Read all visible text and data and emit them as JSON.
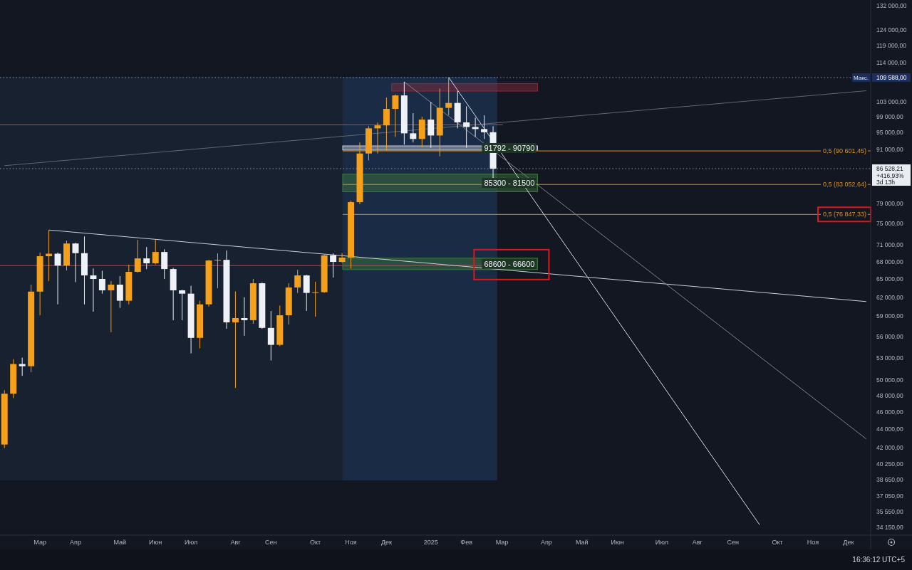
{
  "chart_data": {
    "type": "candlestick",
    "log": true,
    "categories": [
      null,
      null,
      null,
      null,
      "Мар",
      null,
      null,
      null,
      "Апр",
      null,
      null,
      null,
      null,
      "Май",
      null,
      null,
      null,
      "Июн",
      null,
      null,
      null,
      "Июл",
      null,
      null,
      null,
      null,
      "Авг",
      null,
      null,
      null,
      "Сен",
      null,
      null,
      null,
      null,
      "Окт",
      null,
      null,
      null,
      "Ноя",
      null,
      null,
      null,
      "Дек",
      null,
      null,
      null,
      null,
      "2025",
      null,
      null,
      null,
      "Фев",
      null,
      null,
      null,
      "Мар",
      null,
      null,
      null,
      null,
      "Апр",
      null,
      null,
      null,
      "Май",
      null,
      null,
      null,
      "Июн",
      null,
      null,
      null,
      null,
      "Июл",
      null,
      null,
      null,
      "Авг",
      null,
      null,
      null,
      "Сен",
      null,
      null,
      null,
      null,
      "Окт",
      null,
      null,
      null,
      "Ноя",
      null,
      null,
      null,
      "Дек",
      null,
      null
    ],
    "ohlc": [
      [
        42310,
        48710,
        41920,
        48270
      ],
      [
        48270,
        52800,
        47730,
        52130
      ],
      [
        52130,
        53000,
        50560,
        51840
      ],
      [
        51840,
        64050,
        51030,
        62900
      ],
      [
        62900,
        69600,
        59170,
        68950
      ],
      [
        68950,
        73800,
        64640,
        69400
      ],
      [
        69400,
        69600,
        60860,
        67300
      ],
      [
        67300,
        71800,
        66450,
        71260
      ],
      [
        71260,
        71400,
        64470,
        69500
      ],
      [
        69500,
        72590,
        60860,
        65600
      ],
      [
        65600,
        66800,
        59710,
        65000
      ],
      [
        65000,
        66400,
        62570,
        63110
      ],
      [
        63110,
        64640,
        56620,
        64050
      ],
      [
        64050,
        65480,
        60310,
        61430
      ],
      [
        61430,
        67440,
        60860,
        66210
      ],
      [
        66210,
        71920,
        66100,
        68560
      ],
      [
        68560,
        70610,
        66680,
        67690
      ],
      [
        67690,
        71920,
        67500,
        69710
      ],
      [
        69710,
        70200,
        65000,
        66690
      ],
      [
        66690,
        66900,
        58400,
        63110
      ],
      [
        63110,
        63200,
        58400,
        62570
      ],
      [
        62570,
        63850,
        53590,
        55790
      ],
      [
        55790,
        61430,
        54290,
        60860
      ],
      [
        60860,
        68300,
        60500,
        68190
      ],
      [
        68190,
        69450,
        63460,
        68300
      ],
      [
        68300,
        69970,
        57120,
        58080
      ],
      [
        58080,
        62920,
        48990,
        58730
      ],
      [
        58730,
        62000,
        56100,
        58410
      ],
      [
        58410,
        65000,
        57880,
        64280
      ],
      [
        64280,
        64400,
        57100,
        57250
      ],
      [
        57250,
        59820,
        52610,
        54790
      ],
      [
        54790,
        60660,
        54600,
        59160
      ],
      [
        59160,
        64280,
        57770,
        63580
      ],
      [
        63580,
        66570,
        62690,
        65600
      ],
      [
        65600,
        65720,
        59820,
        62690
      ],
      [
        62690,
        64530,
        58950,
        62810
      ],
      [
        62810,
        69200,
        62690,
        69100
      ],
      [
        69100,
        69450,
        65240,
        67940
      ],
      [
        67940,
        69500,
        67800,
        68700
      ],
      [
        68700,
        79660,
        66800,
        79330
      ],
      [
        79330,
        92600,
        78900,
        90000
      ],
      [
        90000,
        96600,
        88400,
        96060
      ],
      [
        96060,
        97500,
        90000,
        96800
      ],
      [
        96800,
        104050,
        90660,
        101030
      ],
      [
        101030,
        104900,
        93950,
        104630
      ],
      [
        104630,
        108380,
        92090,
        94830
      ],
      [
        94830,
        99900,
        92600,
        93450
      ],
      [
        93450,
        99000,
        91500,
        98270
      ],
      [
        98270,
        102900,
        91340,
        94300
      ],
      [
        94300,
        106500,
        89340,
        101300
      ],
      [
        101300,
        109588,
        99350,
        102600
      ],
      [
        102600,
        105800,
        96060,
        97560
      ],
      [
        97560,
        101700,
        91340,
        96400
      ],
      [
        96400,
        98800,
        93950,
        95880
      ],
      [
        95880,
        99350,
        93450,
        95100
      ],
      [
        95100,
        96600,
        82430,
        86528.21
      ],
      null,
      null,
      null,
      null,
      null,
      null,
      null,
      null,
      null,
      null,
      null,
      null,
      null,
      null,
      null,
      null,
      null,
      null,
      null,
      null,
      null,
      null,
      null,
      null,
      null,
      null,
      null,
      null,
      null,
      null,
      null,
      null,
      null,
      null,
      null,
      null,
      null,
      null,
      null,
      null,
      null,
      null
    ],
    "colors": [
      "#f5a01a",
      "#f5a01a",
      "#eef1f6",
      "#f5a01a",
      "#f5a01a",
      "#f5a01a",
      "#eef1f6",
      "#f5a01a",
      "#eef1f6",
      "#eef1f6",
      "#eef1f6",
      "#eef1f6",
      "#f5a01a",
      "#eef1f6",
      "#f5a01a",
      "#f5a01a",
      "#eef1f6",
      "#f5a01a",
      "#eef1f6",
      "#eef1f6",
      "#eef1f6",
      "#eef1f6",
      "#f5a01a",
      "#f5a01a",
      "#f5a01a",
      "#eef1f6",
      "#f5a01a",
      "#eef1f6",
      "#f5a01a",
      "#eef1f6",
      "#eef1f6",
      "#f5a01a",
      "#f5a01a",
      "#f5a01a",
      "#eef1f6",
      "#f5a01a",
      "#f5a01a",
      "#eef1f6",
      "#f5a01a",
      "#f5a01a",
      "#f5a01a",
      "#f5a01a",
      "#f5a01a",
      "#f5a01a",
      "#f5a01a",
      "#eef1f6",
      "#eef1f6",
      "#f5a01a",
      "#eef1f6",
      "#f5a01a",
      "#f5a01a",
      "#eef1f6",
      "#eef1f6",
      "#eef1f6",
      "#eef1f6",
      "#eef1f6",
      null,
      null,
      null,
      null,
      null,
      null,
      null,
      null,
      null,
      null,
      null,
      null,
      null,
      null,
      null,
      null,
      null,
      null,
      null,
      null,
      null,
      null,
      null,
      null,
      null,
      null,
      null,
      null,
      null,
      null,
      null,
      null,
      null,
      null,
      null,
      null,
      null,
      null,
      null,
      null,
      null,
      null
    ],
    "series": [
      {
        "type": "line",
        "color": "#c9ced8",
        "values": [
          null,
          null,
          null,
          null,
          null,
          73800,
          null,
          null,
          null,
          null,
          null,
          null,
          null,
          null,
          null,
          null,
          null,
          null,
          null,
          null,
          null,
          null,
          null,
          null,
          null,
          null,
          null,
          null,
          null,
          null,
          null,
          null,
          null,
          null,
          null,
          null,
          null,
          null,
          null,
          null,
          null,
          null,
          null,
          null,
          null,
          null,
          null,
          null,
          null,
          null,
          null,
          null,
          null,
          null,
          null,
          null,
          null,
          null,
          null,
          null,
          null,
          null,
          null,
          null,
          null,
          null,
          null,
          null,
          null,
          null,
          null,
          null,
          null,
          null,
          null,
          null,
          null,
          null,
          null,
          null,
          null,
          null,
          null,
          null,
          null,
          null,
          null,
          null,
          null,
          null,
          null,
          null,
          null,
          null,
          null,
          null,
          null,
          61300
        ]
      },
      {
        "type": "line",
        "color": "#d8dce4",
        "values": [
          null,
          null,
          null,
          null,
          null,
          null,
          null,
          null,
          null,
          null,
          null,
          null,
          null,
          null,
          null,
          null,
          null,
          null,
          null,
          null,
          null,
          null,
          null,
          null,
          null,
          null,
          null,
          null,
          null,
          null,
          null,
          null,
          null,
          null,
          null,
          null,
          null,
          null,
          null,
          null,
          null,
          null,
          null,
          null,
          null,
          null,
          null,
          null,
          null,
          null,
          109650,
          null,
          null,
          null,
          null,
          null,
          null,
          null,
          null,
          null,
          null,
          null,
          null,
          null,
          null,
          null,
          null,
          null,
          null,
          null,
          null,
          null,
          null,
          null,
          null,
          null,
          null,
          null,
          null,
          null,
          null,
          null,
          null,
          null,
          null,
          34360,
          null,
          null,
          null,
          null,
          null,
          null,
          null,
          null,
          null,
          null,
          null,
          null
        ]
      },
      {
        "type": "line",
        "color": "#7d838f",
        "values": [
          null,
          null,
          null,
          null,
          null,
          null,
          null,
          null,
          null,
          null,
          null,
          null,
          null,
          null,
          null,
          null,
          null,
          null,
          null,
          null,
          null,
          null,
          null,
          null,
          null,
          null,
          null,
          null,
          null,
          null,
          null,
          null,
          null,
          null,
          null,
          null,
          null,
          null,
          null,
          null,
          null,
          null,
          null,
          null,
          null,
          108380,
          null,
          null,
          null,
          null,
          null,
          null,
          null,
          null,
          null,
          null,
          null,
          null,
          null,
          null,
          null,
          null,
          null,
          null,
          null,
          null,
          null,
          null,
          null,
          null,
          null,
          null,
          null,
          null,
          null,
          null,
          null,
          null,
          null,
          null,
          null,
          null,
          null,
          null,
          null,
          null,
          null,
          null,
          null,
          null,
          null,
          null,
          null,
          null,
          null,
          null,
          null,
          42930
        ]
      },
      {
        "type": "line",
        "color": "#5f6672",
        "values": [
          87200,
          null,
          null,
          null,
          null,
          null,
          null,
          null,
          null,
          null,
          null,
          null,
          null,
          null,
          null,
          null,
          null,
          null,
          null,
          null,
          null,
          null,
          null,
          null,
          null,
          null,
          null,
          null,
          null,
          null,
          null,
          null,
          null,
          null,
          null,
          null,
          null,
          null,
          null,
          null,
          null,
          null,
          null,
          null,
          null,
          null,
          null,
          null,
          null,
          null,
          null,
          null,
          null,
          null,
          null,
          null,
          null,
          null,
          null,
          null,
          null,
          null,
          null,
          null,
          null,
          null,
          null,
          null,
          null,
          null,
          null,
          null,
          null,
          null,
          null,
          null,
          null,
          null,
          null,
          null,
          null,
          null,
          null,
          null,
          null,
          null,
          null,
          null,
          null,
          null,
          null,
          null,
          null,
          null,
          null,
          null,
          null,
          105900
        ]
      }
    ],
    "ylim": [
      33450,
      134000
    ],
    "yticks": [
      {
        "value": 132000,
        "label": "132 000,00"
      },
      {
        "value": 124000,
        "label": "124 000,00"
      },
      {
        "value": 119000,
        "label": "119 000,00"
      },
      {
        "value": 114000,
        "label": "114 000,00"
      },
      {
        "value": 109588,
        "label": "109 588,00"
      },
      {
        "value": 103000,
        "label": "103 000,00"
      },
      {
        "value": 99000,
        "label": "99 000,00"
      },
      {
        "value": 95000,
        "label": "95 000,00"
      },
      {
        "value": 91000,
        "label": "91 000,00"
      },
      {
        "value": 86528.21,
        "label": "86 528,21"
      },
      {
        "value": 79000,
        "label": "79 000,00"
      },
      {
        "value": 75000,
        "label": "75 000,00"
      },
      {
        "value": 71000,
        "label": "71 000,00"
      },
      {
        "value": 68000,
        "label": "68 000,00"
      },
      {
        "value": 65000,
        "label": "65 000,00"
      },
      {
        "value": 62000,
        "label": "62 000,00"
      },
      {
        "value": 59000,
        "label": "59 000,00"
      },
      {
        "value": 56000,
        "label": "56 000,00"
      },
      {
        "value": 53000,
        "label": "53 000,00"
      },
      {
        "value": 50000,
        "label": "50 000,00"
      },
      {
        "value": 48000,
        "label": "48 000,00"
      },
      {
        "value": 46000,
        "label": "46 000,00"
      },
      {
        "value": 44000,
        "label": "44 000,00"
      },
      {
        "value": 42000,
        "label": "42 000,00"
      },
      {
        "value": 40250,
        "label": "40 250,00"
      },
      {
        "value": 38650,
        "label": "38 650,00"
      },
      {
        "value": 37050,
        "label": "37 050,00"
      },
      {
        "value": 35550,
        "label": "35 550,00"
      },
      {
        "value": 34150,
        "label": "34 150,00"
      }
    ],
    "ref_lines": [
      {
        "axis": "y",
        "value": 109588,
        "label": "Макс.",
        "color": "#8d96a8",
        "line_style": "dotted"
      },
      {
        "axis": "y",
        "value": 86528.21,
        "color": "#8d96a8",
        "line_style": "dotted"
      },
      {
        "axis": "y",
        "value": 90601.45,
        "label": "0,5 (90 601,45)",
        "color": "#d9901c",
        "line_style": "solid"
      },
      {
        "axis": "y",
        "value": 83052.64,
        "label": "0,5 (83 052,64)",
        "color": "#d9901c",
        "line_style": "solid"
      },
      {
        "axis": "y",
        "value": 76847.33,
        "label": "0,5 (76 847,33)",
        "color": "#d9901c",
        "line_style": "solid"
      },
      {
        "axis": "y",
        "value": 67300,
        "color": "#e0393e",
        "line_style": "solid"
      },
      {
        "axis": "y",
        "value": 96950,
        "color": "#e0393e",
        "line_style": "solid"
      }
    ],
    "bands": [
      {
        "axis": "y",
        "from": 105800,
        "to": 107900,
        "color": "#8e2a38"
      },
      {
        "axis": "y",
        "from": 90790,
        "to": 91792,
        "label": "91792 - 90790",
        "color": "#c9ced8"
      },
      {
        "axis": "y",
        "from": 81500,
        "to": 85300,
        "label": "85300 - 81500",
        "color": "#3f7a3c"
      },
      {
        "axis": "y",
        "from": 66600,
        "to": 68600,
        "label": "68600 - 66600",
        "color": "#3f7a3c"
      }
    ],
    "annotations": [
      "+416,93%",
      "3d 13h",
      "16:36:12 UTC+5"
    ]
  }
}
